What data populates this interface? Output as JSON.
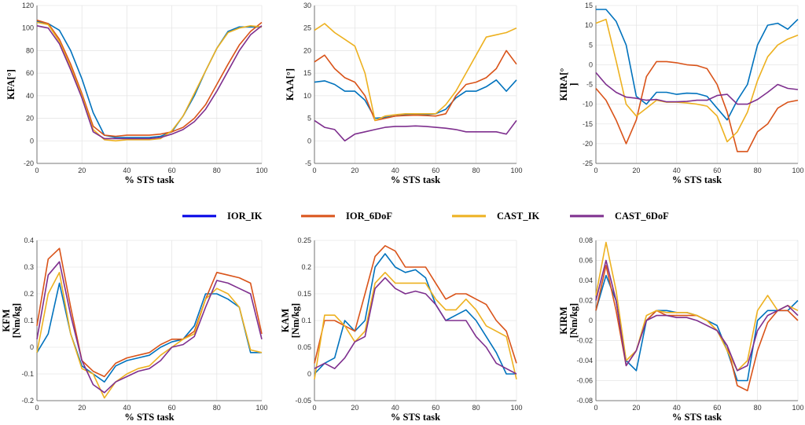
{
  "legend": [
    {
      "label": "IOR_IK",
      "color": "#0000e6"
    },
    {
      "label": "IOR_6DoF",
      "color": "#d95319"
    },
    {
      "label": "CAST_IK",
      "color": "#edb120"
    },
    {
      "label": "CAST_6DoF",
      "color": "#7e2f8e"
    }
  ],
  "series_colors": [
    "#0072bd",
    "#d95319",
    "#edb120",
    "#7e2f8e"
  ],
  "chart_data": [
    {
      "type": "line",
      "ylabel": [
        "KFA[°]"
      ],
      "xlabel": "% STS task",
      "xlim": [
        0,
        100
      ],
      "ylim": [
        -20,
        120
      ],
      "xticks": [
        0,
        20,
        40,
        60,
        80,
        100
      ],
      "yticks": [
        -20,
        0,
        20,
        40,
        60,
        80,
        100,
        120
      ],
      "grid": true,
      "x": [
        0,
        5,
        10,
        15,
        20,
        25,
        30,
        35,
        40,
        45,
        50,
        55,
        60,
        65,
        70,
        75,
        80,
        85,
        90,
        95,
        100
      ],
      "series": [
        {
          "name": "IOR_IK",
          "values": [
            106,
            104,
            98,
            80,
            55,
            25,
            5,
            3,
            3,
            3,
            3,
            4,
            8,
            22,
            40,
            62,
            82,
            97,
            101,
            101,
            101
          ]
        },
        {
          "name": "IOR_6DoF",
          "values": [
            107,
            104,
            90,
            68,
            42,
            13,
            5,
            4,
            5,
            5,
            5,
            6,
            8,
            12,
            20,
            32,
            50,
            68,
            85,
            97,
            105
          ]
        },
        {
          "name": "CAST_IK",
          "values": [
            105,
            103,
            88,
            65,
            40,
            10,
            1,
            0,
            1,
            1,
            1,
            2,
            9,
            22,
            42,
            62,
            82,
            96,
            100,
            102,
            101
          ]
        },
        {
          "name": "CAST_6DoF",
          "values": [
            102,
            100,
            86,
            63,
            38,
            8,
            2,
            2,
            2,
            2,
            2,
            3,
            6,
            10,
            17,
            28,
            44,
            62,
            80,
            94,
            102
          ]
        }
      ]
    },
    {
      "type": "line",
      "ylabel": [
        "KAA[°]"
      ],
      "xlabel": "% STS task",
      "xlim": [
        0,
        100
      ],
      "ylim": [
        -5,
        30
      ],
      "xticks": [
        0,
        20,
        40,
        60,
        80,
        100
      ],
      "yticks": [
        -5,
        0,
        5,
        10,
        15,
        20,
        25,
        30
      ],
      "grid": true,
      "x": [
        0,
        5,
        10,
        15,
        20,
        25,
        30,
        35,
        40,
        45,
        50,
        55,
        60,
        65,
        70,
        75,
        80,
        85,
        90,
        95,
        100
      ],
      "series": [
        {
          "name": "IOR_IK",
          "values": [
            13,
            13.3,
            12.5,
            11,
            11,
            9,
            5,
            5.2,
            5.5,
            5.8,
            5.8,
            5.8,
            6,
            7,
            9.5,
            11,
            11,
            12,
            13.5,
            11,
            13.5
          ]
        },
        {
          "name": "IOR_6DoF",
          "values": [
            17.5,
            19,
            16,
            14,
            13,
            10,
            4.5,
            5,
            5.5,
            5.6,
            5.7,
            5.6,
            5.5,
            6,
            10,
            12.5,
            13,
            14,
            16,
            20,
            17
          ]
        },
        {
          "name": "CAST_IK",
          "values": [
            24.5,
            26,
            24,
            22.5,
            21,
            15,
            4.5,
            5.5,
            5.8,
            6,
            6,
            6,
            6,
            8,
            11,
            15,
            19,
            23,
            23.5,
            24,
            25
          ]
        },
        {
          "name": "CAST_6DoF",
          "values": [
            4.5,
            3,
            2.5,
            0,
            1.5,
            2,
            2.5,
            3,
            3.2,
            3.2,
            3.3,
            3.2,
            3,
            2.8,
            2.5,
            2,
            2,
            2,
            2,
            1.5,
            4.5
          ]
        }
      ]
    },
    {
      "type": "line",
      "ylabel": [
        "KIRA[°",
        "]"
      ],
      "xlabel": "% STS task",
      "xlim": [
        0,
        100
      ],
      "ylim": [
        -25,
        15
      ],
      "xticks": [
        0,
        20,
        40,
        60,
        80,
        100
      ],
      "yticks": [
        -25,
        -20,
        -15,
        -10,
        -5,
        0,
        5,
        10,
        15
      ],
      "grid": true,
      "x": [
        0,
        5,
        10,
        15,
        20,
        25,
        30,
        35,
        40,
        45,
        50,
        55,
        60,
        65,
        70,
        75,
        80,
        85,
        90,
        95,
        100
      ],
      "series": [
        {
          "name": "IOR_IK",
          "values": [
            14,
            14,
            11,
            5,
            -8,
            -10,
            -7,
            -7,
            -7.5,
            -7.2,
            -7.3,
            -8,
            -11,
            -14,
            -9,
            -5,
            5,
            10,
            10.5,
            9,
            11.5
          ]
        },
        {
          "name": "IOR_6DoF",
          "values": [
            -6,
            -9,
            -14,
            -20,
            -14,
            -3,
            0.8,
            0.8,
            0.5,
            0,
            -0.2,
            -1,
            -5,
            -12,
            -22,
            -22,
            -17,
            -15,
            -11,
            -9.5,
            -9
          ]
        },
        {
          "name": "CAST_IK",
          "values": [
            10.5,
            11.5,
            1,
            -10,
            -13,
            -11,
            -9,
            -9.5,
            -9.5,
            -9.7,
            -10,
            -10.5,
            -13,
            -19.5,
            -17,
            -12,
            -4,
            2,
            5,
            6.5,
            7.5
          ]
        },
        {
          "name": "CAST_6DoF",
          "values": [
            -2,
            -5,
            -7,
            -8.2,
            -8.5,
            -9,
            -8.8,
            -9.4,
            -9.4,
            -9.3,
            -9,
            -9,
            -7.8,
            -7.5,
            -10,
            -10,
            -8.8,
            -7,
            -5,
            -6,
            -6.3
          ]
        }
      ]
    },
    {
      "type": "line",
      "ylabel": [
        "KFM",
        "[Nm/kg]"
      ],
      "xlabel": "% STS task",
      "xlim": [
        0,
        100
      ],
      "ylim": [
        -0.2,
        0.4
      ],
      "xticks": [
        0,
        20,
        40,
        60,
        80,
        100
      ],
      "yticks": [
        -0.2,
        -0.1,
        0,
        0.1,
        0.2,
        0.3,
        0.4
      ],
      "grid": true,
      "x": [
        0,
        5,
        10,
        15,
        20,
        25,
        30,
        35,
        40,
        45,
        50,
        55,
        60,
        65,
        70,
        75,
        80,
        85,
        90,
        95,
        100
      ],
      "series": [
        {
          "name": "IOR_IK",
          "values": [
            -0.02,
            0.05,
            0.24,
            0.05,
            -0.07,
            -0.1,
            -0.13,
            -0.07,
            -0.05,
            -0.04,
            -0.03,
            0,
            0.02,
            0.03,
            0.08,
            0.2,
            0.2,
            0.18,
            0.15,
            -0.02,
            -0.02
          ]
        },
        {
          "name": "IOR_6DoF",
          "values": [
            0.08,
            0.33,
            0.37,
            0.15,
            -0.05,
            -0.09,
            -0.11,
            -0.06,
            -0.04,
            -0.03,
            -0.02,
            0.01,
            0.03,
            0.03,
            0.06,
            0.18,
            0.28,
            0.27,
            0.26,
            0.24,
            0.05
          ]
        },
        {
          "name": "CAST_IK",
          "values": [
            -0.02,
            0.2,
            0.28,
            0.05,
            -0.08,
            -0.1,
            -0.19,
            -0.13,
            -0.1,
            -0.08,
            -0.07,
            -0.03,
            0,
            0.03,
            0.05,
            0.18,
            0.22,
            0.2,
            0.15,
            -0.01,
            -0.02
          ]
        },
        {
          "name": "CAST_6DoF",
          "values": [
            0.03,
            0.27,
            0.32,
            0.12,
            -0.05,
            -0.14,
            -0.17,
            -0.13,
            -0.11,
            -0.09,
            -0.08,
            -0.05,
            0,
            0.01,
            0.04,
            0.15,
            0.25,
            0.24,
            0.22,
            0.2,
            0.03
          ]
        }
      ]
    },
    {
      "type": "line",
      "ylabel": [
        "KAM",
        "[Nm/kg]"
      ],
      "xlabel": "% STS task",
      "xlim": [
        0,
        100
      ],
      "ylim": [
        -0.05,
        0.25
      ],
      "xticks": [
        0,
        20,
        40,
        60,
        80,
        100
      ],
      "yticks": [
        -0.05,
        0,
        0.05,
        0.1,
        0.15,
        0.2,
        0.25
      ],
      "grid": true,
      "x": [
        0,
        5,
        10,
        15,
        20,
        25,
        30,
        35,
        40,
        45,
        50,
        55,
        60,
        65,
        70,
        75,
        80,
        85,
        90,
        95,
        100
      ],
      "series": [
        {
          "name": "IOR_IK",
          "values": [
            0,
            0.02,
            0.03,
            0.1,
            0.08,
            0.1,
            0.2,
            0.225,
            0.2,
            0.19,
            0.195,
            0.18,
            0.13,
            0.1,
            0.11,
            0.12,
            0.1,
            0.07,
            0.04,
            0,
            0
          ]
        },
        {
          "name": "IOR_6DoF",
          "values": [
            0.02,
            0.1,
            0.1,
            0.09,
            0.08,
            0.15,
            0.22,
            0.24,
            0.23,
            0.2,
            0.2,
            0.2,
            0.17,
            0.14,
            0.15,
            0.15,
            0.14,
            0.13,
            0.1,
            0.08,
            0.02
          ]
        },
        {
          "name": "CAST_IK",
          "values": [
            -0.01,
            0.11,
            0.11,
            0.09,
            0.06,
            0.08,
            0.17,
            0.19,
            0.17,
            0.17,
            0.17,
            0.17,
            0.14,
            0.12,
            0.12,
            0.14,
            0.12,
            0.09,
            0.08,
            0.07,
            -0.01
          ]
        },
        {
          "name": "CAST_6DoF",
          "values": [
            0.01,
            0.02,
            0.01,
            0.03,
            0.06,
            0.07,
            0.16,
            0.18,
            0.16,
            0.15,
            0.155,
            0.15,
            0.13,
            0.1,
            0.1,
            0.1,
            0.07,
            0.05,
            0.02,
            0.01,
            0
          ]
        }
      ]
    },
    {
      "type": "line",
      "ylabel": [
        "KIRM",
        "[Nm/kg]"
      ],
      "xlabel": "% STS task",
      "xlim": [
        0,
        100
      ],
      "ylim": [
        -0.08,
        0.08
      ],
      "xticks": [
        0,
        20,
        40,
        60,
        80,
        100
      ],
      "yticks": [
        -0.08,
        -0.06,
        -0.04,
        -0.02,
        0,
        0.02,
        0.04,
        0.06,
        0.08
      ],
      "grid": true,
      "x": [
        0,
        5,
        10,
        15,
        20,
        25,
        30,
        35,
        40,
        45,
        50,
        55,
        60,
        65,
        70,
        75,
        80,
        85,
        90,
        95,
        100
      ],
      "series": [
        {
          "name": "IOR_IK",
          "values": [
            0.01,
            0.045,
            0.02,
            -0.04,
            -0.05,
            0,
            0.01,
            0.01,
            0.008,
            0.008,
            0.005,
            0,
            -0.005,
            -0.03,
            -0.06,
            -0.06,
            0,
            0.01,
            0.01,
            0.01,
            0.02
          ]
        },
        {
          "name": "IOR_6DoF",
          "values": [
            0.01,
            0.055,
            0.01,
            -0.045,
            -0.03,
            0,
            0.01,
            0.005,
            0.005,
            0.005,
            0.005,
            0,
            -0.01,
            -0.025,
            -0.065,
            -0.07,
            -0.03,
            -0.002,
            0.01,
            0.01,
            0
          ]
        },
        {
          "name": "CAST_IK",
          "values": [
            0.025,
            0.078,
            0.03,
            -0.04,
            -0.03,
            0.005,
            0.01,
            0.008,
            0.008,
            0.008,
            0.005,
            0,
            -0.01,
            -0.03,
            -0.05,
            -0.04,
            0.01,
            0.025,
            0.01,
            0.015,
            0.01
          ]
        },
        {
          "name": "CAST_6DoF",
          "values": [
            0.02,
            0.06,
            0.02,
            -0.045,
            -0.03,
            0,
            0.005,
            0.005,
            0.003,
            0.003,
            0,
            -0.005,
            -0.01,
            -0.025,
            -0.05,
            -0.045,
            -0.01,
            0.005,
            0.01,
            0.015,
            0.005
          ]
        }
      ]
    }
  ]
}
